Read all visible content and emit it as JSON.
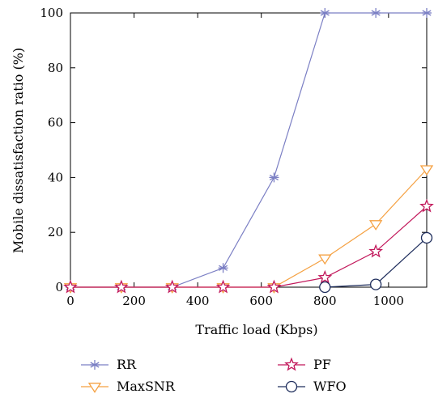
{
  "chart_data": {
    "type": "line",
    "xlabel": "Traffic load (Kbps)",
    "ylabel": "Mobile dissatisfaction ratio (%)",
    "xlim": [
      0,
      1120
    ],
    "ylim": [
      0,
      100
    ],
    "xticks": [
      0,
      200,
      400,
      600,
      800,
      1000
    ],
    "yticks": [
      0,
      20,
      40,
      60,
      80,
      100
    ],
    "legend_position": "bottom",
    "x": [
      0,
      160,
      320,
      480,
      640,
      800,
      960,
      1120
    ],
    "series": [
      {
        "name": "RR",
        "marker": "asterisk",
        "color": "#7b7fc4",
        "values": [
          0,
          0,
          0,
          7,
          40,
          100,
          100,
          100
        ]
      },
      {
        "name": "MaxSNR",
        "marker": "triangle-down",
        "color": "#f5a142",
        "values": [
          0,
          0,
          0,
          0,
          0,
          10.5,
          23,
          43
        ]
      },
      {
        "name": "PF",
        "marker": "star",
        "color": "#c2185b",
        "values": [
          0,
          0,
          0,
          0,
          0,
          3.5,
          13,
          29.5
        ]
      },
      {
        "name": "WFO",
        "marker": "circle",
        "color": "#1e2d5c",
        "values": [
          null,
          null,
          null,
          null,
          null,
          0,
          1,
          18
        ]
      }
    ]
  }
}
